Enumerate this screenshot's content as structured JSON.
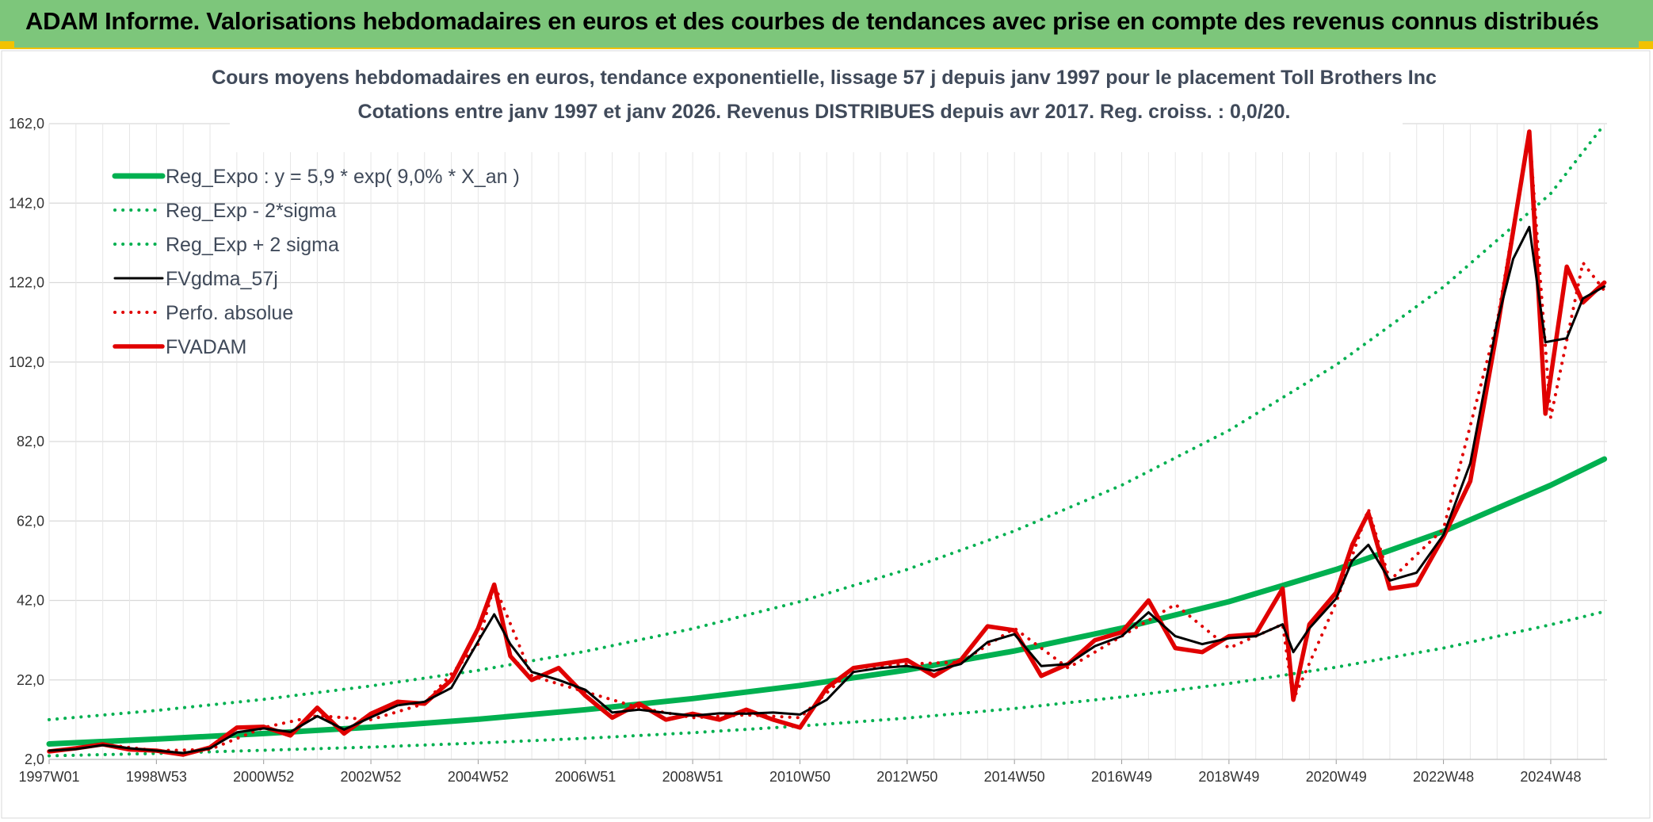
{
  "banner": {
    "title": "ADAM Informe. Valorisations hebdomadaires en euros et des courbes de tendances avec prise en compte des revenus connus distribués"
  },
  "colors": {
    "banner_bg": "#7dc67b",
    "banner_accent": "#f2c200",
    "reg_expo": "#00b050",
    "sigma_bands": "#00b050",
    "fvgdma": "#000000",
    "perfo": "#e00000",
    "fvadam": "#e00000"
  },
  "chart_data": {
    "type": "line",
    "title": "Cours moyens hebdomadaires en euros, tendance exponentielle, lissage 57 j depuis janv 1997 pour le placement Toll Brothers Inc",
    "subtitle": "Cotations entre janv 1997 et janv 2026. Revenus DISTRIBUES depuis avr 2017. Reg. croiss. : 0,0/20.",
    "x_tick_labels": [
      "1997W01",
      "1998W53",
      "2000W52",
      "2002W52",
      "2004W52",
      "2006W51",
      "2008W51",
      "2010W50",
      "2012W50",
      "2014W50",
      "2016W49",
      "2018W49",
      "2020W49",
      "2022W48",
      "2024W48"
    ],
    "y_tick_labels": [
      "2,0",
      "22,0",
      "42,0",
      "62,0",
      "82,0",
      "102,0",
      "122,0",
      "142,0",
      "162,0"
    ],
    "ylim": [
      2,
      162
    ],
    "xlim": [
      1997.0,
      2026.05
    ],
    "grid": true,
    "legend_position": "top-left",
    "series": [
      {
        "name": "Reg_Expo : y = 5,9 * exp( 9,0% *  X_an )",
        "style": "solid-thick",
        "color": "#00b050",
        "x": [
          1997.0,
          1999.0,
          2001.0,
          2003.0,
          2005.0,
          2007.0,
          2009.0,
          2011.0,
          2013.0,
          2015.0,
          2017.0,
          2019.0,
          2021.0,
          2023.0,
          2025.0,
          2026.0
        ],
        "y": [
          5.9,
          7.1,
          8.5,
          10.1,
          12.1,
          14.5,
          17.3,
          20.6,
          24.5,
          29.3,
          35.0,
          41.7,
          49.8,
          59.4,
          71.0,
          77.6
        ]
      },
      {
        "name": "Reg_Exp - 2*sigma",
        "style": "dotted",
        "color": "#00b050",
        "x": [
          1997.0,
          1999.0,
          2001.0,
          2003.0,
          2005.0,
          2007.0,
          2009.0,
          2011.0,
          2013.0,
          2015.0,
          2017.0,
          2019.0,
          2021.0,
          2023.0,
          2025.0,
          2026.0
        ],
        "y": [
          2.9,
          3.5,
          4.3,
          5.1,
          6.1,
          7.3,
          8.7,
          10.4,
          12.4,
          14.8,
          17.7,
          21.1,
          25.2,
          30.0,
          35.9,
          39.2
        ]
      },
      {
        "name": "Reg_Exp + 2 sigma",
        "style": "dotted",
        "color": "#00b050",
        "x": [
          1997.0,
          1999.0,
          2001.0,
          2003.0,
          2005.0,
          2007.0,
          2009.0,
          2011.0,
          2013.0,
          2015.0,
          2017.0,
          2019.0,
          2021.0,
          2023.0,
          2025.0,
          2026.0
        ],
        "y": [
          12.0,
          14.3,
          17.1,
          20.5,
          24.4,
          29.2,
          34.9,
          41.7,
          49.8,
          59.5,
          71.0,
          84.8,
          101.3,
          120.9,
          144.4,
          161.8
        ]
      },
      {
        "name": "FVgdma_57j",
        "style": "solid",
        "color": "#000000",
        "x": [
          1997.0,
          1997.5,
          1998.0,
          1998.5,
          1999.0,
          1999.5,
          2000.0,
          2000.5,
          2001.0,
          2001.5,
          2002.0,
          2002.5,
          2003.0,
          2003.5,
          2004.0,
          2004.5,
          2005.0,
          2005.3,
          2005.6,
          2006.0,
          2006.5,
          2007.0,
          2007.5,
          2008.0,
          2008.5,
          2009.0,
          2009.5,
          2010.0,
          2010.5,
          2011.0,
          2011.5,
          2012.0,
          2012.5,
          2013.0,
          2013.5,
          2014.0,
          2014.5,
          2015.0,
          2015.5,
          2016.0,
          2016.5,
          2017.0,
          2017.5,
          2018.0,
          2018.5,
          2019.0,
          2019.5,
          2020.0,
          2020.2,
          2020.5,
          2021.0,
          2021.3,
          2021.6,
          2022.0,
          2022.5,
          2023.0,
          2023.5,
          2024.0,
          2024.3,
          2024.6,
          2024.9,
          2025.3,
          2025.6,
          2026.0
        ],
        "y": [
          4.2,
          4.6,
          5.6,
          4.8,
          4.2,
          3.6,
          4.8,
          8.8,
          9.8,
          8.9,
          12.9,
          9.5,
          12.6,
          15.6,
          16.5,
          20.0,
          31.7,
          38.5,
          31.0,
          24.0,
          22.0,
          19.5,
          13.8,
          14.5,
          13.7,
          13.0,
          13.6,
          13.5,
          13.8,
          13.3,
          17.0,
          24.0,
          25.0,
          25.5,
          24.3,
          26.0,
          31.5,
          33.5,
          25.5,
          26.0,
          30.5,
          33.0,
          39.0,
          33.0,
          31.0,
          32.5,
          33.0,
          36.0,
          29.0,
          35.0,
          42.5,
          52.0,
          56.0,
          47.0,
          49.0,
          58.5,
          76.5,
          112.0,
          128.0,
          136.0,
          107.0,
          108.0,
          118.0,
          121.0
        ]
      },
      {
        "name": "Perfo. absolue",
        "style": "dotted",
        "color": "#e00000",
        "x": [
          1997.0,
          1998.0,
          1999.0,
          2000.0,
          2001.0,
          2002.0,
          2003.0,
          2004.0,
          2005.0,
          2005.3,
          2006.0,
          2007.0,
          2008.0,
          2009.0,
          2010.0,
          2011.0,
          2012.0,
          2013.0,
          2014.0,
          2015.0,
          2016.0,
          2017.0,
          2018.0,
          2019.0,
          2020.0,
          2020.2,
          2021.0,
          2021.6,
          2022.0,
          2023.0,
          2024.0,
          2024.6,
          2025.0,
          2025.6,
          2026.0
        ],
        "y": [
          4.0,
          5.8,
          4.2,
          4.5,
          10.0,
          13.0,
          12.0,
          16.0,
          31.0,
          46.0,
          23.0,
          19.0,
          15.0,
          12.5,
          13.2,
          12.5,
          25.0,
          26.0,
          26.5,
          35.0,
          25.0,
          33.0,
          41.0,
          30.0,
          36.0,
          17.0,
          41.5,
          65.0,
          47.0,
          60.0,
          112.0,
          160.0,
          88.0,
          127.0,
          120.0
        ]
      },
      {
        "name": "FVADAM",
        "style": "solid-thick",
        "color": "#e00000",
        "x": [
          1997.0,
          1997.5,
          1998.0,
          1998.5,
          1999.0,
          1999.5,
          2000.0,
          2000.5,
          2001.0,
          2001.5,
          2002.0,
          2002.5,
          2003.0,
          2003.5,
          2004.0,
          2004.5,
          2005.0,
          2005.3,
          2005.6,
          2006.0,
          2006.5,
          2007.0,
          2007.5,
          2008.0,
          2008.5,
          2009.0,
          2009.5,
          2010.0,
          2010.5,
          2011.0,
          2011.5,
          2012.0,
          2012.5,
          2013.0,
          2013.5,
          2014.0,
          2014.5,
          2015.0,
          2015.5,
          2016.0,
          2016.5,
          2017.0,
          2017.5,
          2018.0,
          2018.5,
          2019.0,
          2019.5,
          2020.0,
          2020.2,
          2020.5,
          2021.0,
          2021.3,
          2021.6,
          2022.0,
          2022.5,
          2023.0,
          2023.5,
          2024.0,
          2024.3,
          2024.6,
          2024.9,
          2025.3,
          2025.6,
          2026.0
        ],
        "y": [
          4.0,
          4.8,
          5.8,
          4.5,
          4.2,
          3.2,
          5.0,
          10.0,
          10.2,
          8.0,
          15.0,
          8.5,
          13.5,
          16.5,
          16.0,
          22.0,
          35.0,
          46.0,
          28.0,
          22.0,
          25.0,
          18.0,
          12.5,
          16.0,
          12.0,
          13.5,
          12.0,
          14.5,
          12.0,
          10.0,
          20.0,
          25.0,
          26.0,
          27.0,
          23.0,
          27.0,
          35.5,
          34.5,
          23.0,
          26.0,
          32.0,
          34.0,
          42.0,
          30.0,
          29.0,
          33.0,
          33.5,
          45.0,
          17.0,
          36.0,
          44.0,
          56.0,
          64.0,
          45.0,
          46.0,
          58.0,
          72.0,
          110.0,
          135.0,
          160.0,
          89.0,
          126.0,
          117.0,
          122.0
        ]
      }
    ]
  }
}
